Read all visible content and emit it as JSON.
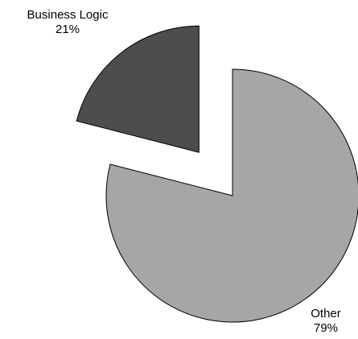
{
  "chart_data": {
    "type": "pie",
    "title": "",
    "slices": [
      {
        "label": "Business Logic",
        "value_label": "21%",
        "value": 21,
        "color": "#4d4d4d",
        "exploded": true
      },
      {
        "label": "Other",
        "value_label": "79%",
        "value": 79,
        "color": "#a6a6a6",
        "exploded": false
      }
    ],
    "legend": "none",
    "slice_edge_color": "#000000"
  }
}
